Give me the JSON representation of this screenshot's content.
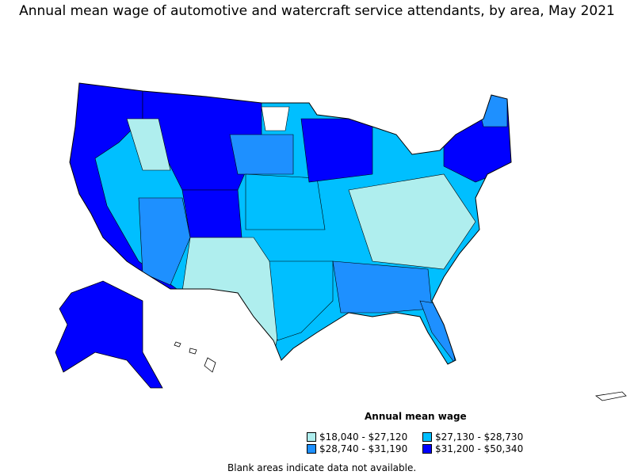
{
  "title": "Annual mean wage of automotive and watercraft service attendants, by area, May 2021",
  "legend": {
    "title": "Annual mean wage",
    "items": [
      {
        "label": "$18,040 - $27,120",
        "color": "#AFEEEE"
      },
      {
        "label": "$27,130 - $28,730",
        "color": "#00BFFF"
      },
      {
        "label": "$28,740 - $31,190",
        "color": "#1E90FF"
      },
      {
        "label": "$31,200 - $50,340",
        "color": "#0000FF"
      }
    ]
  },
  "note": "Blank areas indicate data not available."
}
